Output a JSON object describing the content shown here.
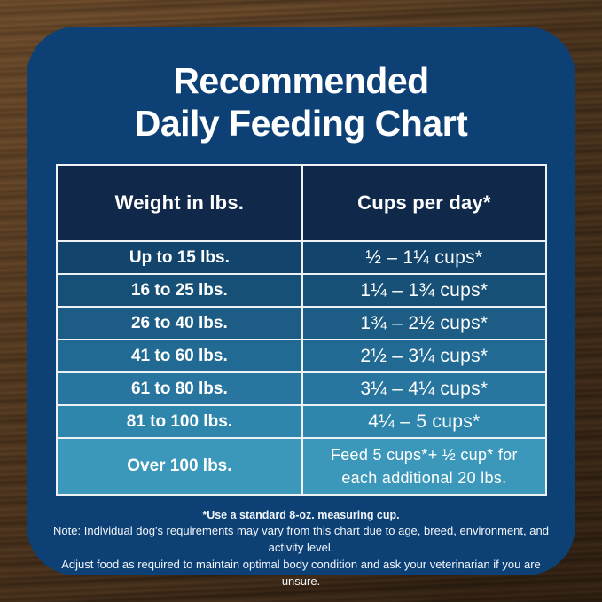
{
  "card": {
    "bg_color": "#0d4176",
    "border_color": "#eef2f5"
  },
  "title": {
    "line1": "Recommended",
    "line2": "Daily Feeding Chart"
  },
  "chart_data": {
    "type": "table",
    "title": "Recommended Daily Feeding Chart",
    "columns": [
      "Weight in lbs.",
      "Cups per day*"
    ],
    "rows": [
      [
        "Up to 15 lbs.",
        "½ – 1¼ cups*"
      ],
      [
        "16 to 25 lbs.",
        "1¼ – 1¾ cups*"
      ],
      [
        "26 to 40 lbs.",
        "1¾ – 2½ cups*"
      ],
      [
        "41 to 60 lbs.",
        "2½ – 3¼ cups*"
      ],
      [
        "61 to 80 lbs.",
        "3¼ – 4¼ cups*"
      ],
      [
        "81 to 100 lbs.",
        "4¼ – 5 cups*"
      ],
      [
        "Over 100 lbs.",
        "Feed 5 cups*+ ½ cup* for each additional 20 lbs."
      ]
    ],
    "header_bg": "#10294b",
    "row_colors": [
      "#13446b",
      "#175077",
      "#1c5c85",
      "#216a93",
      "#28769f",
      "#2f86ad",
      "#3b98ba"
    ]
  },
  "footer": {
    "line1": "*Use a standard 8-oz. measuring cup.",
    "line2": "Note: Individual dog's requirements may vary from this chart due to age, breed, environment, and activity level.",
    "line3": "Adjust food as required to maintain optimal body condition and ask your veterinarian if you are unsure."
  }
}
